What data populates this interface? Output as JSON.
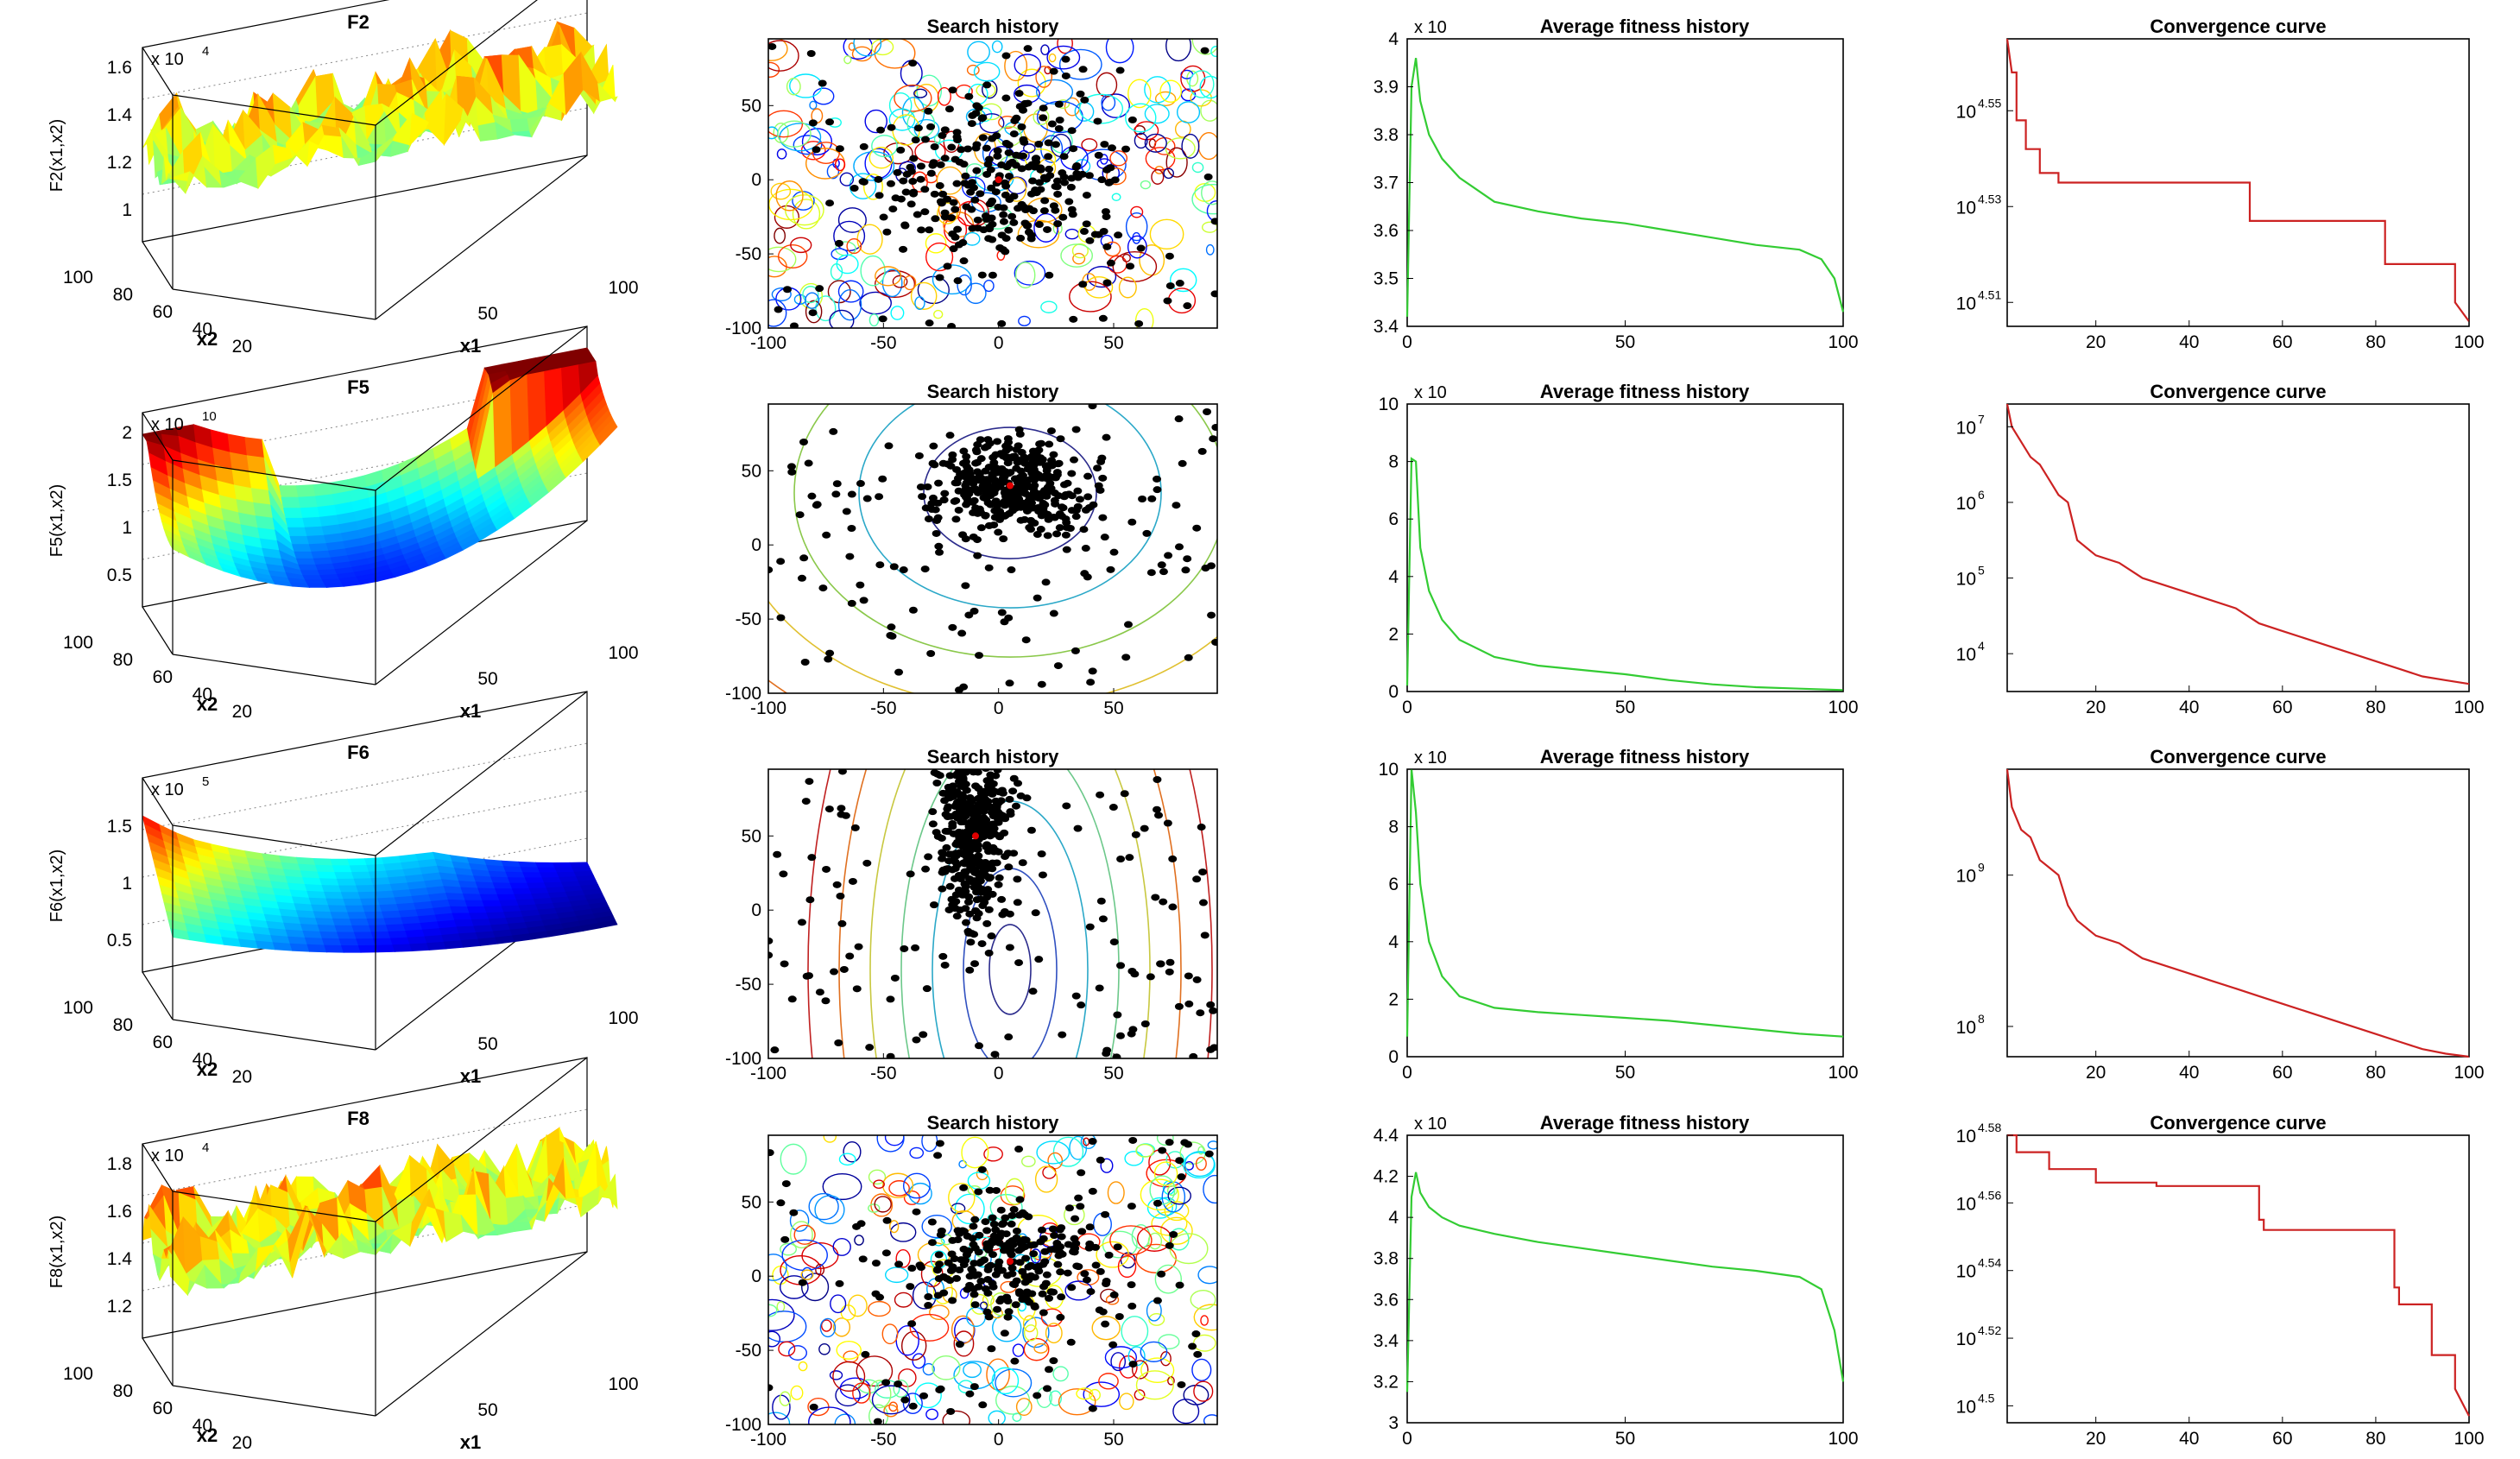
{
  "figure": {
    "rows": [
      {
        "surface": {
          "title": "F2",
          "zlabel": "F2(x1,x2)",
          "multiplier": "x 10",
          "multiplier_exp": "4",
          "zticks": [
            "1",
            "1.2",
            "1.4",
            "1.6"
          ],
          "x2ticks": [
            "100",
            "80",
            "60",
            "40",
            "20"
          ],
          "x1ticks": [
            "50",
            "100"
          ],
          "x1label": "x1",
          "x2label": "x2",
          "shape": "rugged"
        },
        "search": {
          "title": "Search history",
          "xticks": [
            "-100",
            "-50",
            "0",
            "50"
          ],
          "yticks": [
            "50",
            "0",
            "-50",
            "-100"
          ],
          "best": [
            0,
            0
          ],
          "contour": "rugged",
          "spread": 55
        },
        "fitness": {
          "title": "Average fitness history",
          "multiplier": "x 10",
          "yticks": [
            "3.4",
            "3.5",
            "3.6",
            "3.7",
            "3.8",
            "3.9",
            "4"
          ],
          "xticks": [
            "0",
            "50",
            "100"
          ],
          "ylim": [
            3.4,
            4.0
          ],
          "xlim": [
            0,
            100
          ],
          "x": [
            0,
            1,
            2,
            3,
            5,
            8,
            12,
            20,
            30,
            40,
            50,
            60,
            70,
            80,
            90,
            95,
            98,
            100
          ],
          "y": [
            3.42,
            3.9,
            3.96,
            3.87,
            3.8,
            3.75,
            3.71,
            3.66,
            3.64,
            3.625,
            3.615,
            3.6,
            3.585,
            3.57,
            3.56,
            3.54,
            3.5,
            3.43
          ]
        },
        "convergence": {
          "title": "Convergence curve",
          "yscale": "log",
          "yticks": [
            {
              "base": "10",
              "exp": "4.51",
              "v": 4.51
            },
            {
              "base": "10",
              "exp": "4.53",
              "v": 4.53
            },
            {
              "base": "10",
              "exp": "4.55",
              "v": 4.55
            }
          ],
          "xticks": [
            "20",
            "40",
            "60",
            "80",
            "100"
          ],
          "ylim": [
            4.505,
            4.565
          ],
          "xlim": [
            1,
            100
          ],
          "x": [
            1,
            2,
            3,
            3,
            5,
            5,
            8,
            8,
            12,
            12,
            53,
            53,
            82,
            82,
            97,
            97,
            100
          ],
          "y": [
            4.565,
            4.558,
            4.558,
            4.548,
            4.548,
            4.542,
            4.542,
            4.537,
            4.537,
            4.535,
            4.535,
            4.527,
            4.527,
            4.518,
            4.518,
            4.51,
            4.506
          ]
        }
      },
      {
        "surface": {
          "title": "F5",
          "zlabel": "F5(x1,x2)",
          "multiplier": "x 10",
          "multiplier_exp": "10",
          "zticks": [
            "0.5",
            "1",
            "1.5",
            "2"
          ],
          "x2ticks": [
            "100",
            "80",
            "60",
            "40",
            "20"
          ],
          "x1ticks": [
            "50",
            "100"
          ],
          "x1label": "x1",
          "x2label": "x2",
          "shape": "bowl"
        },
        "search": {
          "title": "Search history",
          "xticks": [
            "-100",
            "-50",
            "0",
            "50"
          ],
          "yticks": [
            "50",
            "0",
            "-50",
            "-100"
          ],
          "best": [
            5,
            40
          ],
          "contour": "ellipses",
          "spread": 30
        },
        "fitness": {
          "title": "Average fitness history",
          "multiplier": "x 10",
          "yticks": [
            "0",
            "2",
            "4",
            "6",
            "8",
            "10"
          ],
          "xticks": [
            "0",
            "50",
            "100"
          ],
          "ylim": [
            0,
            10
          ],
          "xlim": [
            0,
            100
          ],
          "x": [
            0,
            1,
            2,
            3,
            5,
            8,
            12,
            20,
            30,
            40,
            50,
            60,
            70,
            80,
            90,
            100
          ],
          "y": [
            0.2,
            8.1,
            8.0,
            5.0,
            3.5,
            2.5,
            1.8,
            1.2,
            0.9,
            0.75,
            0.6,
            0.4,
            0.25,
            0.15,
            0.1,
            0.05
          ]
        },
        "convergence": {
          "title": "Convergence curve",
          "yscale": "log",
          "yticks": [
            {
              "base": "10",
              "exp": "4",
              "v": 4
            },
            {
              "base": "10",
              "exp": "5",
              "v": 5
            },
            {
              "base": "10",
              "exp": "6",
              "v": 6
            },
            {
              "base": "10",
              "exp": "7",
              "v": 7
            }
          ],
          "xticks": [
            "20",
            "40",
            "60",
            "80",
            "100"
          ],
          "ylim": [
            3.5,
            7.3
          ],
          "xlim": [
            1,
            100
          ],
          "x": [
            1,
            2,
            4,
            6,
            8,
            10,
            12,
            14,
            16,
            18,
            20,
            25,
            30,
            35,
            40,
            45,
            50,
            55,
            60,
            65,
            70,
            75,
            80,
            85,
            90,
            95,
            100
          ],
          "y": [
            7.3,
            7.0,
            6.8,
            6.6,
            6.5,
            6.3,
            6.1,
            6.0,
            5.5,
            5.4,
            5.3,
            5.2,
            5.0,
            4.9,
            4.8,
            4.7,
            4.6,
            4.4,
            4.3,
            4.2,
            4.1,
            4.0,
            3.9,
            3.8,
            3.7,
            3.65,
            3.6
          ]
        }
      },
      {
        "surface": {
          "title": "F6",
          "zlabel": "F6(x1,x2)",
          "multiplier": "x 10",
          "multiplier_exp": "5",
          "zticks": [
            "0.5",
            "1",
            "1.5"
          ],
          "x2ticks": [
            "100",
            "80",
            "60",
            "40",
            "20"
          ],
          "x1ticks": [
            "50",
            "100"
          ],
          "x1label": "x1",
          "x2label": "x2",
          "shape": "valley"
        },
        "search": {
          "title": "Search history",
          "xticks": [
            "-100",
            "-50",
            "0",
            "50"
          ],
          "yticks": [
            "50",
            "0",
            "-50",
            "-100"
          ],
          "best": [
            -10,
            50
          ],
          "contour": "vertical",
          "spread": 30
        },
        "fitness": {
          "title": "Average fitness history",
          "multiplier": "x 10",
          "yticks": [
            "0",
            "2",
            "4",
            "6",
            "8",
            "10"
          ],
          "xticks": [
            "0",
            "50",
            "100"
          ],
          "ylim": [
            0,
            10
          ],
          "xlim": [
            0,
            100
          ],
          "x": [
            0,
            1,
            2,
            3,
            5,
            8,
            12,
            20,
            30,
            40,
            50,
            60,
            70,
            80,
            90,
            100
          ],
          "y": [
            0.7,
            10.0,
            8.5,
            6.0,
            4.0,
            2.8,
            2.1,
            1.7,
            1.55,
            1.45,
            1.35,
            1.25,
            1.1,
            0.95,
            0.8,
            0.7
          ]
        },
        "convergence": {
          "title": "Convergence curve",
          "yscale": "log",
          "yticks": [
            {
              "base": "10",
              "exp": "8",
              "v": 8
            },
            {
              "base": "10",
              "exp": "9",
              "v": 9
            }
          ],
          "xticks": [
            "20",
            "40",
            "60",
            "80",
            "100"
          ],
          "ylim": [
            7.8,
            9.7
          ],
          "xlim": [
            1,
            100
          ],
          "x": [
            1,
            2,
            4,
            6,
            8,
            10,
            12,
            14,
            16,
            18,
            20,
            25,
            30,
            35,
            40,
            45,
            50,
            55,
            60,
            65,
            70,
            75,
            80,
            85,
            90,
            95,
            100
          ],
          "y": [
            9.7,
            9.45,
            9.3,
            9.25,
            9.1,
            9.05,
            9.0,
            8.8,
            8.7,
            8.65,
            8.6,
            8.55,
            8.45,
            8.4,
            8.35,
            8.3,
            8.25,
            8.2,
            8.15,
            8.1,
            8.05,
            8.0,
            7.95,
            7.9,
            7.85,
            7.82,
            7.8
          ]
        }
      },
      {
        "surface": {
          "title": "F8",
          "zlabel": "F8(x1,x2)",
          "multiplier": "x 10",
          "multiplier_exp": "4",
          "zticks": [
            "1.2",
            "1.4",
            "1.6",
            "1.8"
          ],
          "x2ticks": [
            "100",
            "80",
            "60",
            "40",
            "20"
          ],
          "x1ticks": [
            "50",
            "100"
          ],
          "x1label": "x1",
          "x2label": "x2",
          "shape": "rugged"
        },
        "search": {
          "title": "Search history",
          "xticks": [
            "-100",
            "-50",
            "0",
            "50"
          ],
          "yticks": [
            "50",
            "0",
            "-50",
            "-100"
          ],
          "best": [
            5,
            10
          ],
          "contour": "rugged",
          "spread": 40
        },
        "fitness": {
          "title": "Average fitness history",
          "multiplier": "x 10",
          "yticks": [
            "3",
            "3.2",
            "3.4",
            "3.6",
            "3.8",
            "4",
            "4.2",
            "4.4"
          ],
          "xticks": [
            "0",
            "50",
            "100"
          ],
          "ylim": [
            3.0,
            4.4
          ],
          "xlim": [
            0,
            100
          ],
          "x": [
            0,
            1,
            2,
            3,
            5,
            8,
            12,
            20,
            30,
            40,
            50,
            60,
            70,
            80,
            90,
            95,
            98,
            100
          ],
          "y": [
            3.15,
            4.1,
            4.22,
            4.12,
            4.05,
            4.0,
            3.96,
            3.92,
            3.88,
            3.85,
            3.82,
            3.79,
            3.76,
            3.74,
            3.71,
            3.65,
            3.45,
            3.2
          ]
        },
        "convergence": {
          "title": "Convergence curve",
          "yscale": "log",
          "yticks": [
            {
              "base": "10",
              "exp": "4.5",
              "v": 4.5
            },
            {
              "base": "10",
              "exp": "4.52",
              "v": 4.52
            },
            {
              "base": "10",
              "exp": "4.54",
              "v": 4.54
            },
            {
              "base": "10",
              "exp": "4.56",
              "v": 4.56
            },
            {
              "base": "10",
              "exp": "4.58",
              "v": 4.58
            }
          ],
          "xticks": [
            "20",
            "40",
            "60",
            "80",
            "100"
          ],
          "ylim": [
            4.495,
            4.58
          ],
          "xlim": [
            1,
            100
          ],
          "x": [
            1,
            3,
            3,
            10,
            10,
            20,
            20,
            33,
            33,
            55,
            55,
            56,
            56,
            84,
            84,
            85,
            85,
            92,
            92,
            97,
            97,
            100
          ],
          "y": [
            4.58,
            4.58,
            4.575,
            4.575,
            4.57,
            4.57,
            4.566,
            4.566,
            4.565,
            4.565,
            4.555,
            4.555,
            4.552,
            4.552,
            4.535,
            4.535,
            4.53,
            4.53,
            4.515,
            4.515,
            4.505,
            4.497
          ]
        }
      }
    ]
  },
  "chart_data": [
    {
      "type": "line",
      "title": "Average fitness history (F2)",
      "x": [
        0,
        1,
        2,
        3,
        5,
        8,
        12,
        20,
        30,
        40,
        50,
        60,
        70,
        80,
        90,
        95,
        98,
        100
      ],
      "y": [
        3.42,
        3.9,
        3.96,
        3.87,
        3.8,
        3.75,
        3.71,
        3.66,
        3.64,
        3.625,
        3.615,
        3.6,
        3.585,
        3.57,
        3.56,
        3.54,
        3.5,
        3.43
      ],
      "ylim": [
        3.4,
        4.0
      ]
    },
    {
      "type": "line",
      "title": "Convergence curve (F2)",
      "yscale": "log",
      "xlim": [
        1,
        100
      ],
      "ylim_log10": [
        4.505,
        4.565
      ]
    },
    {
      "type": "line",
      "title": "Average fitness history (F5)",
      "x": [
        0,
        1,
        2,
        3,
        5,
        8,
        12,
        20,
        30,
        40,
        50,
        60,
        70,
        80,
        90,
        100
      ],
      "y": [
        0.2,
        8.1,
        8.0,
        5.0,
        3.5,
        2.5,
        1.8,
        1.2,
        0.9,
        0.75,
        0.6,
        0.4,
        0.25,
        0.15,
        0.1,
        0.05
      ],
      "ylim": [
        0,
        10
      ]
    },
    {
      "type": "line",
      "title": "Convergence curve (F5)",
      "yscale": "log",
      "xlim": [
        1,
        100
      ],
      "ylim_log10": [
        3.5,
        7.3
      ]
    },
    {
      "type": "line",
      "title": "Average fitness history (F6)",
      "x": [
        0,
        1,
        2,
        3,
        5,
        8,
        12,
        20,
        30,
        40,
        50,
        60,
        70,
        80,
        90,
        100
      ],
      "y": [
        0.7,
        10.0,
        8.5,
        6.0,
        4.0,
        2.8,
        2.1,
        1.7,
        1.55,
        1.45,
        1.35,
        1.25,
        1.1,
        0.95,
        0.8,
        0.7
      ],
      "ylim": [
        0,
        10
      ]
    },
    {
      "type": "line",
      "title": "Convergence curve (F6)",
      "yscale": "log",
      "xlim": [
        1,
        100
      ],
      "ylim_log10": [
        7.8,
        9.7
      ]
    },
    {
      "type": "line",
      "title": "Average fitness history (F8)",
      "x": [
        0,
        1,
        2,
        3,
        5,
        8,
        12,
        20,
        30,
        40,
        50,
        60,
        70,
        80,
        90,
        95,
        98,
        100
      ],
      "y": [
        3.15,
        4.1,
        4.22,
        4.12,
        4.05,
        4.0,
        3.96,
        3.92,
        3.88,
        3.85,
        3.82,
        3.79,
        3.76,
        3.74,
        3.71,
        3.65,
        3.45,
        3.2
      ],
      "ylim": [
        3.0,
        4.4
      ]
    },
    {
      "type": "line",
      "title": "Convergence curve (F8)",
      "yscale": "log",
      "xlim": [
        1,
        100
      ],
      "ylim_log10": [
        4.495,
        4.58
      ]
    }
  ]
}
